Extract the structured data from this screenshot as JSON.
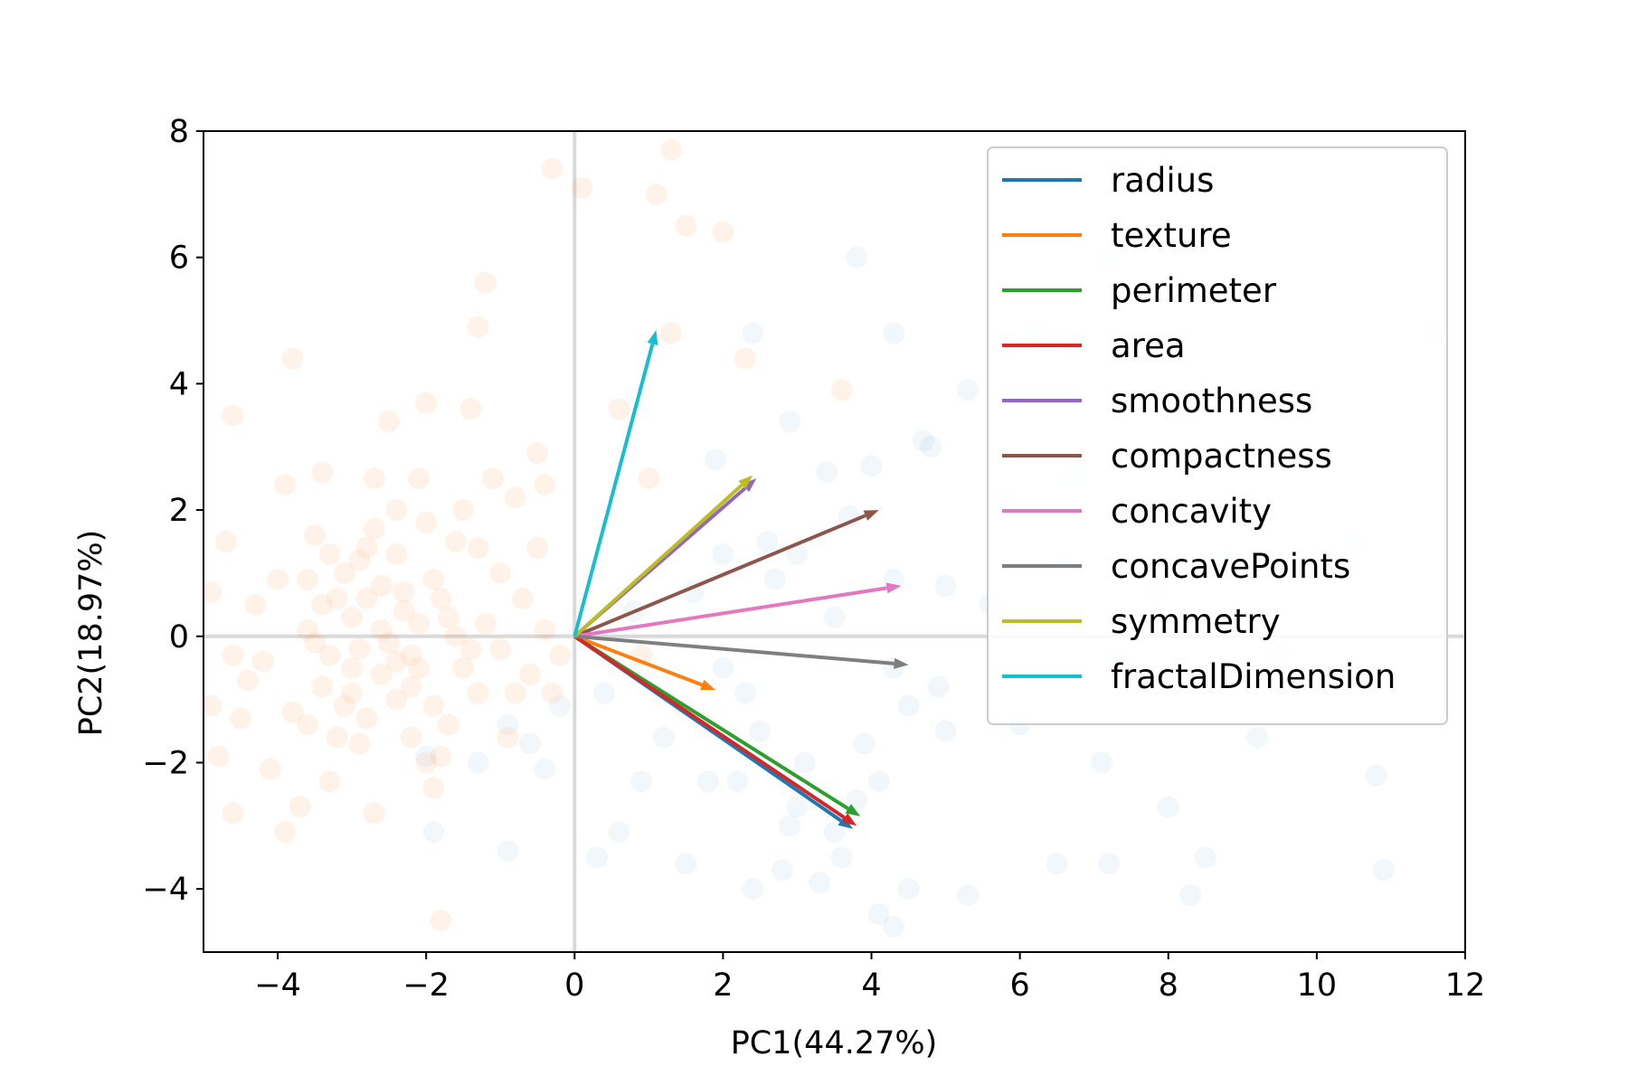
{
  "chart_data": {
    "type": "scatter",
    "xlabel": "PC1(44.27%)",
    "ylabel": "PC2(18.97%)",
    "xlim": [
      -5,
      12
    ],
    "ylim": [
      -5,
      8
    ],
    "xticks": [
      -4,
      -2,
      0,
      2,
      4,
      6,
      8,
      10,
      12
    ],
    "yticks": [
      -4,
      -2,
      0,
      2,
      4,
      6,
      8
    ],
    "xtick_labels": [
      "−4",
      "−2",
      "0",
      "2",
      "4",
      "6",
      "8",
      "10",
      "12"
    ],
    "ytick_labels": [
      "−4",
      "−2",
      "0",
      "2",
      "4",
      "6",
      "8"
    ],
    "grid": false,
    "reference_lines": {
      "x": 0,
      "y": 0,
      "color": "#d9d9d9"
    },
    "legend_position": "top-right",
    "point_clusters": [
      {
        "color": "#ff7f0e",
        "opacity": 0.09,
        "points": [
          [
            -3.0,
            0.3
          ],
          [
            -2.6,
            0.8
          ],
          [
            -2.2,
            -0.3
          ],
          [
            -3.4,
            -0.8
          ],
          [
            -1.8,
            0.6
          ],
          [
            -2.8,
            1.4
          ],
          [
            -3.6,
            0.1
          ],
          [
            -2.4,
            -1.0
          ],
          [
            -1.5,
            -0.5
          ],
          [
            -3.2,
            -1.6
          ],
          [
            -4.0,
            0.9
          ],
          [
            -2.0,
            1.8
          ],
          [
            -1.2,
            0.2
          ],
          [
            -2.9,
            -0.2
          ],
          [
            -3.8,
            -1.2
          ],
          [
            -4.4,
            -0.7
          ],
          [
            -2.3,
            0.4
          ],
          [
            -1.7,
            -1.4
          ],
          [
            -3.1,
            1.0
          ],
          [
            -2.6,
            -0.6
          ],
          [
            -3.5,
            1.6
          ],
          [
            -1.0,
            1.0
          ],
          [
            -0.6,
            -0.6
          ],
          [
            -2.1,
            2.5
          ],
          [
            -3.9,
            2.4
          ],
          [
            -2.5,
            3.4
          ],
          [
            -1.4,
            3.6
          ],
          [
            -0.8,
            2.2
          ],
          [
            -4.6,
            -0.3
          ],
          [
            -4.7,
            1.5
          ],
          [
            -3.3,
            -2.3
          ],
          [
            -2.7,
            -2.8
          ],
          [
            -1.9,
            -2.4
          ],
          [
            -3.7,
            -2.7
          ],
          [
            -4.5,
            -1.3
          ],
          [
            -4.8,
            -1.9
          ],
          [
            -1.3,
            -0.9
          ],
          [
            -0.4,
            0.1
          ],
          [
            -0.9,
            -1.6
          ],
          [
            -2.4,
            1.3
          ],
          [
            -3.0,
            -0.9
          ],
          [
            -1.6,
            1.5
          ],
          [
            -2.2,
            -1.6
          ],
          [
            -3.4,
            0.5
          ],
          [
            -2.8,
            -1.3
          ],
          [
            -1.1,
            2.5
          ],
          [
            -0.5,
            2.9
          ],
          [
            -3.8,
            4.4
          ],
          [
            -4.6,
            3.5
          ],
          [
            -2.0,
            3.7
          ],
          [
            -1.2,
            5.6
          ],
          [
            -1.3,
            4.9
          ],
          [
            -0.3,
            7.4
          ],
          [
            0.1,
            7.1
          ],
          [
            1.1,
            7.0
          ],
          [
            1.5,
            6.5
          ],
          [
            1.3,
            7.7
          ],
          [
            2.0,
            6.4
          ],
          [
            0.6,
            3.6
          ],
          [
            1.3,
            4.8
          ],
          [
            2.3,
            4.4
          ],
          [
            3.6,
            3.9
          ],
          [
            1.0,
            2.5
          ],
          [
            0.9,
            -0.3
          ],
          [
            -3.6,
            0.9
          ],
          [
            -2.2,
            -0.8
          ],
          [
            -1.6,
            0.0
          ],
          [
            -2.6,
            0.1
          ],
          [
            -3.2,
            0.6
          ],
          [
            -2.4,
            -0.4
          ],
          [
            -1.9,
            0.9
          ],
          [
            -2.9,
            1.2
          ],
          [
            -3.3,
            -0.3
          ],
          [
            -2.1,
            0.2
          ],
          [
            -3.6,
            -1.4
          ],
          [
            -4.2,
            -0.4
          ],
          [
            -1.4,
            -0.2
          ],
          [
            -1.9,
            -1.1
          ],
          [
            -2.8,
            0.6
          ],
          [
            -3.1,
            -1.1
          ],
          [
            -2.4,
            2.0
          ],
          [
            -1.8,
            -1.9
          ],
          [
            -4.3,
            0.5
          ],
          [
            -0.7,
            0.6
          ],
          [
            -0.2,
            -0.3
          ],
          [
            -0.8,
            -0.9
          ],
          [
            -2.7,
            2.5
          ],
          [
            -3.4,
            2.6
          ],
          [
            -1.5,
            2.0
          ],
          [
            -0.5,
            1.4
          ],
          [
            -1.8,
            -4.5
          ],
          [
            -3.9,
            -3.1
          ],
          [
            -4.6,
            -2.8
          ],
          [
            -2.5,
            -0.1
          ],
          [
            -3.0,
            -0.5
          ],
          [
            -2.1,
            -0.5
          ],
          [
            -2.7,
            1.7
          ],
          [
            -1.3,
            1.4
          ],
          [
            -1.0,
            -0.2
          ],
          [
            -0.3,
            -0.9
          ],
          [
            -4.1,
            -2.1
          ],
          [
            -4.9,
            -1.1
          ],
          [
            -4.9,
            0.7
          ],
          [
            -3.5,
            -0.1
          ],
          [
            -2.3,
            0.7
          ],
          [
            -1.7,
            0.3
          ],
          [
            -2.9,
            -1.7
          ],
          [
            -2.0,
            -2.0
          ],
          [
            -3.3,
            1.3
          ],
          [
            -0.4,
            2.4
          ]
        ]
      },
      {
        "color": "#1f77b4",
        "opacity": 0.06,
        "points": [
          [
            2.5,
            -1.5
          ],
          [
            3.1,
            -2.0
          ],
          [
            4.5,
            -1.1
          ],
          [
            3.8,
            -2.6
          ],
          [
            2.2,
            -2.3
          ],
          [
            5.0,
            -1.5
          ],
          [
            3.5,
            -3.1
          ],
          [
            4.9,
            -0.8
          ],
          [
            2.9,
            -3.0
          ],
          [
            1.8,
            -2.3
          ],
          [
            5.6,
            0.5
          ],
          [
            4.3,
            0.9
          ],
          [
            3.0,
            1.3
          ],
          [
            3.7,
            1.9
          ],
          [
            4.8,
            3.0
          ],
          [
            3.4,
            2.6
          ],
          [
            2.4,
            4.8
          ],
          [
            4.3,
            4.8
          ],
          [
            6.2,
            4.8
          ],
          [
            7.2,
            6.0
          ],
          [
            3.8,
            6.0
          ],
          [
            5.3,
            3.9
          ],
          [
            6.6,
            1.1
          ],
          [
            7.3,
            -0.4
          ],
          [
            6.0,
            -1.4
          ],
          [
            7.1,
            -2.0
          ],
          [
            6.5,
            -3.6
          ],
          [
            7.2,
            -3.6
          ],
          [
            8.5,
            -3.5
          ],
          [
            8.3,
            -4.1
          ],
          [
            10.8,
            -2.2
          ],
          [
            10.9,
            -3.7
          ],
          [
            11.6,
            4.8
          ],
          [
            4.5,
            -4.0
          ],
          [
            4.1,
            -4.4
          ],
          [
            4.3,
            -4.6
          ],
          [
            5.3,
            -4.1
          ],
          [
            3.3,
            -3.9
          ],
          [
            2.4,
            -4.0
          ],
          [
            1.5,
            -3.6
          ],
          [
            0.6,
            -3.1
          ],
          [
            0.3,
            -3.5
          ],
          [
            -0.9,
            -3.4
          ],
          [
            -1.9,
            -3.1
          ],
          [
            -0.9,
            -1.4
          ],
          [
            -1.3,
            -2.0
          ],
          [
            2.8,
            -3.7
          ],
          [
            3.6,
            -3.5
          ],
          [
            3.0,
            -2.7
          ],
          [
            4.1,
            -2.3
          ],
          [
            2.0,
            1.3
          ],
          [
            2.6,
            1.5
          ],
          [
            1.9,
            2.8
          ],
          [
            2.9,
            3.4
          ],
          [
            4.0,
            2.7
          ],
          [
            4.7,
            3.1
          ],
          [
            4.3,
            -0.5
          ],
          [
            3.5,
            0.3
          ],
          [
            2.0,
            -0.5
          ],
          [
            2.3,
            -0.9
          ],
          [
            1.2,
            -1.6
          ],
          [
            0.9,
            -2.3
          ],
          [
            -0.4,
            -2.1
          ],
          [
            -0.6,
            -1.7
          ],
          [
            -2.0,
            -1.9
          ],
          [
            0.4,
            -0.9
          ],
          [
            -0.2,
            -1.1
          ],
          [
            0.8,
            0.4
          ],
          [
            1.6,
            0.7
          ],
          [
            2.7,
            0.9
          ],
          [
            5.0,
            0.8
          ],
          [
            5.8,
            2.2
          ],
          [
            6.7,
            2.5
          ],
          [
            7.8,
            0.7
          ],
          [
            8.8,
            1.2
          ],
          [
            9.5,
            -0.3
          ],
          [
            10.5,
            1.5
          ],
          [
            8.0,
            -2.7
          ],
          [
            9.2,
            -1.6
          ],
          [
            3.9,
            -1.7
          ]
        ]
      }
    ],
    "series": [
      {
        "name": "radius",
        "color": "#1f77b4",
        "x": 3.75,
        "y": -3.05
      },
      {
        "name": "texture",
        "color": "#ff7f0e",
        "x": 1.9,
        "y": -0.85
      },
      {
        "name": "perimeter",
        "color": "#2ca02c",
        "x": 3.85,
        "y": -2.85
      },
      {
        "name": "area",
        "color": "#d62728",
        "x": 3.8,
        "y": -3.0
      },
      {
        "name": "smoothness",
        "color": "#9467bd",
        "x": 2.45,
        "y": 2.5
      },
      {
        "name": "compactness",
        "color": "#8c564b",
        "x": 4.1,
        "y": 2.0
      },
      {
        "name": "concavity",
        "color": "#e377c2",
        "x": 4.4,
        "y": 0.8
      },
      {
        "name": "concavePoints",
        "color": "#7f7f7f",
        "x": 4.5,
        "y": -0.45
      },
      {
        "name": "symmetry",
        "color": "#bcbd22",
        "x": 2.4,
        "y": 2.55
      },
      {
        "name": "fractalDimension",
        "color": "#17becf",
        "x": 1.1,
        "y": 4.85
      }
    ]
  }
}
